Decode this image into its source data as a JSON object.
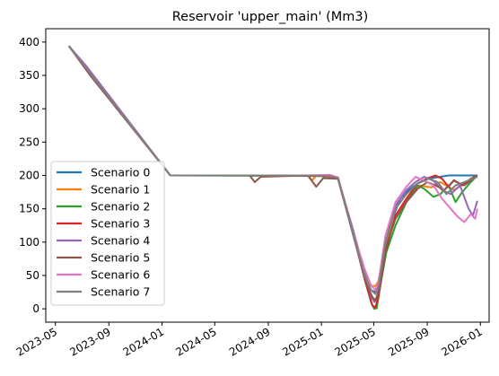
{
  "chart_data": {
    "type": "line",
    "title": "Reservoir 'upper_main' (Mm3)",
    "xlabel": "",
    "ylabel": "",
    "x_range": [
      "2023-04-09",
      "2026-01-21"
    ],
    "ylim": [
      -20,
      420
    ],
    "y_ticks": [
      0,
      50,
      100,
      150,
      200,
      250,
      300,
      350,
      400
    ],
    "x_ticks": [
      "2023-05",
      "2023-09",
      "2024-01",
      "2024-05",
      "2024-09",
      "2025-01",
      "2025-05",
      "2025-09",
      "2026-01"
    ],
    "grid": false,
    "legend_position": "center-left",
    "series": [
      {
        "name": "Scenario 0",
        "color": "#1f77b4",
        "points": [
          [
            "2023-06-01",
            394
          ],
          [
            "2024-01-20",
            200
          ],
          [
            "2024-12-01",
            200
          ],
          [
            "2025-01-20",
            199
          ],
          [
            "2025-02-08",
            196
          ],
          [
            "2025-03-15",
            110
          ],
          [
            "2025-04-10",
            50
          ],
          [
            "2025-04-25",
            28
          ],
          [
            "2025-05-05",
            25
          ],
          [
            "2025-05-12",
            34
          ],
          [
            "2025-05-25",
            90
          ],
          [
            "2025-06-10",
            130
          ],
          [
            "2025-07-01",
            165
          ],
          [
            "2025-07-20",
            178
          ],
          [
            "2025-08-10",
            188
          ],
          [
            "2025-09-01",
            195
          ],
          [
            "2025-10-01",
            198
          ],
          [
            "2025-10-20",
            200
          ],
          [
            "2025-12-25",
            200
          ]
        ]
      },
      {
        "name": "Scenario 1",
        "color": "#ff7f0e",
        "points": [
          [
            "2023-06-01",
            394
          ],
          [
            "2024-01-20",
            200
          ],
          [
            "2024-12-01",
            200
          ],
          [
            "2024-12-10",
            192
          ],
          [
            "2024-12-20",
            200
          ],
          [
            "2025-02-08",
            196
          ],
          [
            "2025-03-15",
            112
          ],
          [
            "2025-04-10",
            55
          ],
          [
            "2025-04-22",
            35
          ],
          [
            "2025-05-05",
            34
          ],
          [
            "2025-05-12",
            42
          ],
          [
            "2025-05-28",
            95
          ],
          [
            "2025-06-20",
            140
          ],
          [
            "2025-07-20",
            170
          ],
          [
            "2025-08-15",
            185
          ],
          [
            "2025-09-10",
            182
          ],
          [
            "2025-10-01",
            190
          ],
          [
            "2025-11-01",
            178
          ],
          [
            "2025-12-01",
            190
          ],
          [
            "2025-12-25",
            200
          ]
        ]
      },
      {
        "name": "Scenario 2",
        "color": "#2ca02c",
        "points": [
          [
            "2023-06-01",
            394
          ],
          [
            "2024-01-20",
            200
          ],
          [
            "2025-01-20",
            199
          ],
          [
            "2025-02-08",
            197
          ],
          [
            "2025-03-15",
            115
          ],
          [
            "2025-04-10",
            45
          ],
          [
            "2025-04-25",
            10
          ],
          [
            "2025-05-02",
            0
          ],
          [
            "2025-05-08",
            1
          ],
          [
            "2025-05-15",
            30
          ],
          [
            "2025-05-30",
            85
          ],
          [
            "2025-06-20",
            125
          ],
          [
            "2025-07-15",
            160
          ],
          [
            "2025-08-10",
            185
          ],
          [
            "2025-08-25",
            180
          ],
          [
            "2025-09-15",
            168
          ],
          [
            "2025-10-01",
            172
          ],
          [
            "2025-10-20",
            185
          ],
          [
            "2025-11-05",
            160
          ],
          [
            "2025-11-20",
            175
          ],
          [
            "2025-12-10",
            190
          ],
          [
            "2025-12-25",
            200
          ]
        ]
      },
      {
        "name": "Scenario 3",
        "color": "#d62728",
        "points": [
          [
            "2023-06-01",
            394
          ],
          [
            "2024-01-20",
            200
          ],
          [
            "2024-09-01",
            200
          ],
          [
            "2025-01-20",
            199
          ],
          [
            "2025-02-08",
            195
          ],
          [
            "2025-03-15",
            112
          ],
          [
            "2025-04-12",
            40
          ],
          [
            "2025-04-28",
            5
          ],
          [
            "2025-05-05",
            2
          ],
          [
            "2025-05-12",
            18
          ],
          [
            "2025-05-28",
            85
          ],
          [
            "2025-06-20",
            140
          ],
          [
            "2025-07-15",
            165
          ],
          [
            "2025-08-10",
            188
          ],
          [
            "2025-08-30",
            195
          ],
          [
            "2025-09-20",
            200
          ],
          [
            "2025-10-05",
            195
          ],
          [
            "2025-10-20",
            183
          ],
          [
            "2025-11-01",
            193
          ],
          [
            "2025-11-20",
            185
          ],
          [
            "2025-12-10",
            195
          ],
          [
            "2025-12-25",
            200
          ]
        ]
      },
      {
        "name": "Scenario 4",
        "color": "#9467bd",
        "points": [
          [
            "2023-06-01",
            394
          ],
          [
            "2023-07-10",
            365
          ],
          [
            "2024-01-20",
            200
          ],
          [
            "2024-12-01",
            200
          ],
          [
            "2025-01-20",
            199
          ],
          [
            "2025-02-08",
            196
          ],
          [
            "2025-03-15",
            118
          ],
          [
            "2025-04-10",
            55
          ],
          [
            "2025-04-25",
            18
          ],
          [
            "2025-05-03",
            10
          ],
          [
            "2025-05-10",
            22
          ],
          [
            "2025-05-28",
            100
          ],
          [
            "2025-06-20",
            155
          ],
          [
            "2025-07-15",
            178
          ],
          [
            "2025-08-05",
            190
          ],
          [
            "2025-08-25",
            198
          ],
          [
            "2025-09-15",
            192
          ],
          [
            "2025-10-05",
            178
          ],
          [
            "2025-10-25",
            172
          ],
          [
            "2025-11-15",
            185
          ],
          [
            "2025-12-05",
            150
          ],
          [
            "2025-12-15",
            140
          ],
          [
            "2025-12-25",
            162
          ]
        ]
      },
      {
        "name": "Scenario 5",
        "color": "#8c564b",
        "points": [
          [
            "2023-06-01",
            394
          ],
          [
            "2023-07-20",
            350
          ],
          [
            "2024-01-20",
            200
          ],
          [
            "2024-07-20",
            200
          ],
          [
            "2024-08-01",
            190
          ],
          [
            "2024-08-15",
            198
          ],
          [
            "2024-12-01",
            200
          ],
          [
            "2024-12-20",
            183
          ],
          [
            "2025-01-05",
            196
          ],
          [
            "2025-02-08",
            195
          ],
          [
            "2025-03-15",
            112
          ],
          [
            "2025-04-12",
            40
          ],
          [
            "2025-04-28",
            18
          ],
          [
            "2025-05-05",
            12
          ],
          [
            "2025-05-15",
            30
          ],
          [
            "2025-05-30",
            95
          ],
          [
            "2025-06-20",
            135
          ],
          [
            "2025-07-15",
            160
          ],
          [
            "2025-08-10",
            180
          ],
          [
            "2025-09-01",
            190
          ],
          [
            "2025-09-20",
            185
          ],
          [
            "2025-10-10",
            178
          ],
          [
            "2025-11-01",
            192
          ],
          [
            "2025-11-25",
            185
          ],
          [
            "2025-12-25",
            200
          ]
        ]
      },
      {
        "name": "Scenario 6",
        "color": "#e377c2",
        "points": [
          [
            "2023-06-01",
            394
          ],
          [
            "2024-01-20",
            200
          ],
          [
            "2024-12-01",
            200
          ],
          [
            "2025-01-20",
            201
          ],
          [
            "2025-02-08",
            197
          ],
          [
            "2025-03-15",
            115
          ],
          [
            "2025-04-10",
            60
          ],
          [
            "2025-04-25",
            35
          ],
          [
            "2025-05-05",
            28
          ],
          [
            "2025-05-12",
            40
          ],
          [
            "2025-05-28",
            110
          ],
          [
            "2025-06-20",
            160
          ],
          [
            "2025-07-15",
            183
          ],
          [
            "2025-08-05",
            198
          ],
          [
            "2025-08-25",
            192
          ],
          [
            "2025-09-15",
            185
          ],
          [
            "2025-10-05",
            165
          ],
          [
            "2025-10-25",
            150
          ],
          [
            "2025-11-10",
            138
          ],
          [
            "2025-11-25",
            130
          ],
          [
            "2025-12-10",
            142
          ],
          [
            "2025-12-20",
            135
          ],
          [
            "2025-12-25",
            150
          ]
        ]
      },
      {
        "name": "Scenario 7",
        "color": "#7f7f7f",
        "points": [
          [
            "2023-06-01",
            394
          ],
          [
            "2024-01-20",
            200
          ],
          [
            "2024-12-01",
            200
          ],
          [
            "2025-01-20",
            199
          ],
          [
            "2025-02-08",
            196
          ],
          [
            "2025-03-15",
            113
          ],
          [
            "2025-04-10",
            50
          ],
          [
            "2025-04-25",
            28
          ],
          [
            "2025-05-05",
            22
          ],
          [
            "2025-05-12",
            32
          ],
          [
            "2025-05-28",
            100
          ],
          [
            "2025-06-20",
            150
          ],
          [
            "2025-07-15",
            172
          ],
          [
            "2025-08-10",
            188
          ],
          [
            "2025-09-05",
            195
          ],
          [
            "2025-09-25",
            190
          ],
          [
            "2025-10-15",
            172
          ],
          [
            "2025-11-05",
            185
          ],
          [
            "2025-11-25",
            190
          ],
          [
            "2025-12-25",
            198
          ]
        ]
      }
    ]
  }
}
